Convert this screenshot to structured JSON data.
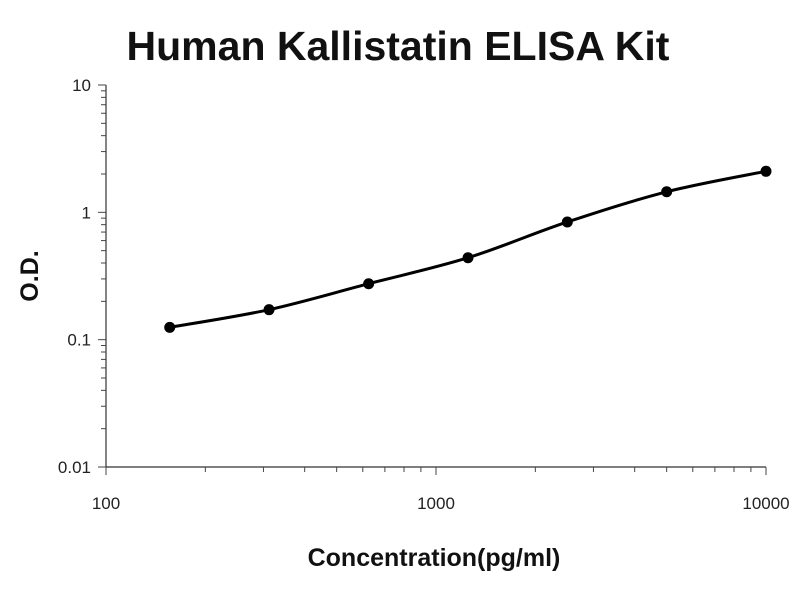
{
  "chart_data": {
    "type": "line",
    "title": "Human Kallistatin ELISA Kit",
    "xlabel": "Concentration(pg/ml)",
    "ylabel": "O.D.",
    "xscale": "log",
    "yscale": "log",
    "xlim": [
      100,
      10000
    ],
    "ylim": [
      0.01,
      10
    ],
    "x_ticks": [
      {
        "value": 100,
        "label": "100"
      },
      {
        "value": 1000,
        "label": "1000"
      },
      {
        "value": 10000,
        "label": "10000"
      }
    ],
    "y_ticks": [
      {
        "value": 0.01,
        "label": "0.01"
      },
      {
        "value": 0.1,
        "label": "0.1"
      },
      {
        "value": 1,
        "label": "1"
      },
      {
        "value": 10,
        "label": "10"
      }
    ],
    "grid": false,
    "legend": "none",
    "series": [
      {
        "x": [
          156,
          312,
          625,
          1250,
          2500,
          5000,
          10000
        ],
        "y": [
          0.125,
          0.172,
          0.275,
          0.44,
          0.84,
          1.45,
          2.1
        ],
        "color": "#000000",
        "markers": true,
        "smooth": true
      }
    ]
  }
}
